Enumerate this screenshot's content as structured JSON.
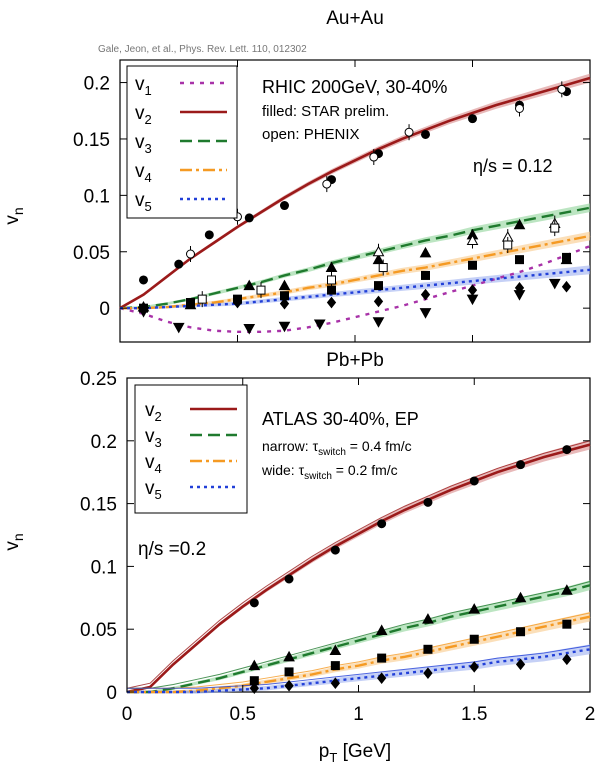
{
  "colors": {
    "v1": "#a832a8",
    "v2": "#9b1a1a",
    "v3": "#1f7a2e",
    "v4": "#f59a23",
    "v5": "#2240d8",
    "v2_band": "#d98b8b",
    "v3_band": "#8fd39a",
    "v4_band": "#f8c98a",
    "v5_band": "#9fb0f0"
  },
  "citation": "Gale, Jeon, et al., Phys. Rev. Lett. 110, 012302",
  "xlabel": "p_T [GeV]",
  "chart_data": [
    {
      "type": "line",
      "title": "Au+Au",
      "ylabel": "v_n",
      "xlim": [
        0,
        2
      ],
      "ylim": [
        -0.03,
        0.22
      ],
      "yticks": [
        "0",
        "0.05",
        "0.1",
        "0.15",
        "0.2"
      ],
      "legend_position": "top-left",
      "legend": [
        "v_1",
        "v_2",
        "v_3",
        "v_4",
        "v_5"
      ],
      "annotations": [
        "RHIC 200GeV, 30-40%",
        "filled: STAR prelim.",
        "open: PHENIX",
        "η/s = 0.12"
      ],
      "x": [
        0,
        0.1,
        0.2,
        0.3,
        0.4,
        0.5,
        0.6,
        0.7,
        0.8,
        0.9,
        1.0,
        1.1,
        1.2,
        1.3,
        1.4,
        1.5,
        1.6,
        1.7,
        1.8,
        1.9,
        2.0
      ],
      "series": [
        {
          "name": "v1",
          "values": [
            0,
            -0.005,
            -0.012,
            -0.017,
            -0.02,
            -0.021,
            -0.021,
            -0.02,
            -0.017,
            -0.013,
            -0.008,
            -0.003,
            0.002,
            0.008,
            0.014,
            0.02,
            0.026,
            0.032,
            0.039,
            0.047,
            0.055
          ]
        },
        {
          "name": "v2",
          "values": [
            0,
            0.012,
            0.028,
            0.044,
            0.058,
            0.072,
            0.085,
            0.098,
            0.11,
            0.121,
            0.131,
            0.141,
            0.15,
            0.158,
            0.166,
            0.173,
            0.18,
            0.186,
            0.192,
            0.198,
            0.204
          ]
        },
        {
          "name": "v3",
          "values": [
            0,
            0.001,
            0.004,
            0.008,
            0.013,
            0.018,
            0.023,
            0.029,
            0.034,
            0.04,
            0.045,
            0.05,
            0.055,
            0.06,
            0.064,
            0.069,
            0.073,
            0.077,
            0.081,
            0.085,
            0.089
          ]
        },
        {
          "name": "v4",
          "values": [
            0,
            0,
            0.001,
            0.003,
            0.005,
            0.008,
            0.011,
            0.014,
            0.018,
            0.021,
            0.025,
            0.029,
            0.033,
            0.036,
            0.04,
            0.044,
            0.048,
            0.052,
            0.056,
            0.06,
            0.064
          ]
        },
        {
          "name": "v5",
          "values": [
            0,
            0,
            0.001,
            0.002,
            0.003,
            0.004,
            0.006,
            0.008,
            0.01,
            0.012,
            0.014,
            0.016,
            0.018,
            0.02,
            0.022,
            0.024,
            0.026,
            0.028,
            0.03,
            0.032,
            0.034
          ]
        }
      ],
      "points": {
        "v1_filled": {
          "x": [
            0.1,
            0.25,
            0.55,
            0.7,
            0.85,
            1.1,
            1.3,
            1.5,
            1.7,
            1.85
          ],
          "y": [
            -0.003,
            -0.017,
            -0.018,
            -0.016,
            -0.014,
            -0.012,
            -0.004,
            0.008,
            0.012,
            0.022
          ]
        },
        "v2_filled": {
          "x": [
            0.1,
            0.25,
            0.38,
            0.55,
            0.7,
            0.9,
            1.1,
            1.3,
            1.5,
            1.7,
            1.9
          ],
          "y": [
            0.025,
            0.039,
            0.065,
            0.08,
            0.091,
            0.114,
            0.137,
            0.154,
            0.168,
            0.18,
            0.192
          ]
        },
        "v2_open": {
          "x": [
            0.3,
            0.5,
            0.88,
            1.08,
            1.23,
            1.7,
            1.88
          ],
          "y": [
            0.048,
            0.081,
            0.11,
            0.134,
            0.156,
            0.177,
            0.194
          ]
        },
        "v3_filled": {
          "x": [
            0.1,
            0.3,
            0.55,
            0.7,
            0.9,
            1.1,
            1.3,
            1.5,
            1.7,
            1.9
          ],
          "y": [
            0.001,
            0.003,
            0.02,
            0.02,
            0.036,
            0.043,
            0.049,
            0.065,
            0.074,
            0.043
          ]
        },
        "v3_open": {
          "x": [
            1.1,
            1.5,
            1.65,
            1.85
          ],
          "y": [
            0.05,
            0.06,
            0.063,
            0.075
          ]
        },
        "v4_filled": {
          "x": [
            0.1,
            0.3,
            0.5,
            0.7,
            0.9,
            1.1,
            1.3,
            1.5,
            1.7,
            1.9
          ],
          "y": [
            0,
            0.005,
            0.008,
            0.011,
            0.016,
            0.02,
            0.029,
            0.038,
            0.043,
            0.045
          ]
        },
        "v4_open": {
          "x": [
            0.35,
            0.6,
            0.9,
            1.12,
            1.65,
            1.85
          ],
          "y": [
            0.008,
            0.016,
            0.025,
            0.036,
            0.056,
            0.071
          ]
        },
        "v5_filled": {
          "x": [
            0.5,
            0.7,
            0.9,
            1.1,
            1.3,
            1.5,
            1.7,
            1.9
          ],
          "y": [
            0.005,
            0.004,
            0.005,
            0.006,
            0.012,
            0.016,
            0.018,
            0.019
          ]
        }
      }
    },
    {
      "type": "line",
      "title": "Pb+Pb",
      "ylabel": "v_n",
      "xlabel": "p_T [GeV]",
      "xlim": [
        0,
        2
      ],
      "ylim": [
        0,
        0.25
      ],
      "xticks": [
        "0",
        "0.5",
        "1",
        "1.5",
        "2"
      ],
      "yticks": [
        "0",
        "0.05",
        "0.1",
        "0.15",
        "0.2",
        "0.25"
      ],
      "legend_position": "top-left",
      "legend": [
        "v_2",
        "v_3",
        "v_4",
        "v_5"
      ],
      "annotations": [
        "ATLAS 30-40%, EP",
        "narrow: τ_switch = 0.4 fm/c",
        "wide: τ_switch = 0.2 fm/c",
        "η/s =0.2"
      ],
      "x": [
        0,
        0.1,
        0.2,
        0.3,
        0.4,
        0.5,
        0.6,
        0.7,
        0.8,
        0.9,
        1.0,
        1.1,
        1.2,
        1.3,
        1.4,
        1.5,
        1.6,
        1.7,
        1.8,
        1.9,
        2.0
      ],
      "series": [
        {
          "name": "v2",
          "values": [
            0,
            0.004,
            0.022,
            0.038,
            0.054,
            0.068,
            0.081,
            0.093,
            0.105,
            0.116,
            0.126,
            0.136,
            0.145,
            0.153,
            0.161,
            0.168,
            0.175,
            0.181,
            0.187,
            0.192,
            0.197
          ]
        },
        {
          "name": "v3",
          "values": [
            0,
            0,
            0.003,
            0.007,
            0.011,
            0.016,
            0.021,
            0.026,
            0.031,
            0.036,
            0.041,
            0.046,
            0.051,
            0.055,
            0.06,
            0.064,
            0.068,
            0.072,
            0.076,
            0.08,
            0.085
          ]
        },
        {
          "name": "v4",
          "values": [
            0,
            0,
            0,
            0.001,
            0.003,
            0.005,
            0.008,
            0.011,
            0.014,
            0.018,
            0.021,
            0.025,
            0.028,
            0.032,
            0.036,
            0.04,
            0.044,
            0.048,
            0.052,
            0.056,
            0.06
          ]
        },
        {
          "name": "v5",
          "values": [
            0,
            0,
            0,
            0,
            0.001,
            0.002,
            0.003,
            0.005,
            0.007,
            0.009,
            0.011,
            0.013,
            0.015,
            0.017,
            0.019,
            0.021,
            0.024,
            0.026,
            0.028,
            0.031,
            0.034
          ]
        }
      ],
      "points": {
        "v2_filled": {
          "x": [
            0.55,
            0.7,
            0.9,
            1.1,
            1.3,
            1.5,
            1.7,
            1.9
          ],
          "y": [
            0.071,
            0.09,
            0.113,
            0.134,
            0.151,
            0.168,
            0.181,
            0.193
          ]
        },
        "v3_filled": {
          "x": [
            0.55,
            0.7,
            0.9,
            1.1,
            1.3,
            1.5,
            1.7,
            1.9
          ],
          "y": [
            0.021,
            0.028,
            0.033,
            0.049,
            0.058,
            0.066,
            0.075,
            0.081
          ]
        },
        "v4_filled": {
          "x": [
            0.55,
            0.7,
            0.9,
            1.1,
            1.3,
            1.5,
            1.7,
            1.9
          ],
          "y": [
            0.009,
            0.016,
            0.021,
            0.027,
            0.034,
            0.042,
            0.048,
            0.054
          ]
        },
        "v5_filled": {
          "x": [
            0.55,
            0.7,
            0.9,
            1.1,
            1.3,
            1.5,
            1.7,
            1.9
          ],
          "y": [
            0.003,
            0.005,
            0.007,
            0.011,
            0.015,
            0.02,
            0.022,
            0.026
          ]
        }
      }
    }
  ]
}
